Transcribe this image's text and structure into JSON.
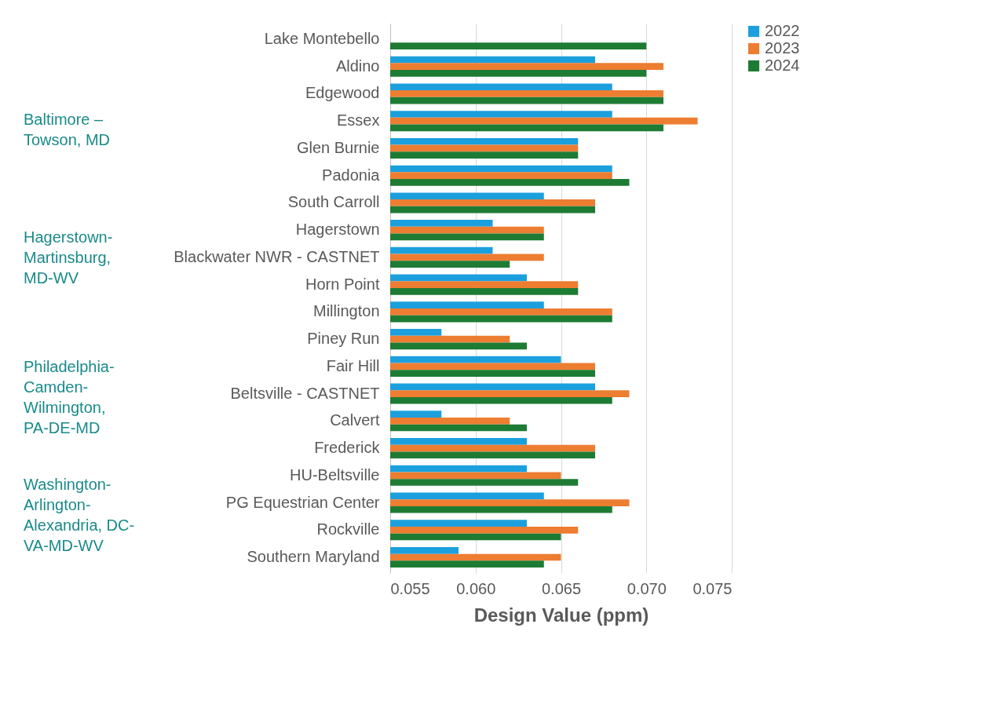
{
  "chart_data": {
    "type": "bar",
    "orientation": "horizontal",
    "xlabel": "Design Value (ppm)",
    "categories": [
      "Lake Montebello",
      "Aldino",
      "Edgewood",
      "Essex",
      "Glen Burnie",
      "Padonia",
      "South Carroll",
      "Hagerstown",
      "Blackwater NWR - CASTNET",
      "Horn Point",
      "Millington",
      "Piney Run",
      "Fair Hill",
      "Beltsville - CASTNET",
      "Calvert",
      "Frederick",
      "HU-Beltsville",
      "PG Equestrian Center",
      "Rockville",
      "Southern Maryland"
    ],
    "series": [
      {
        "name": "2022",
        "color": "#1ca0dd",
        "values": [
          null,
          0.067,
          0.068,
          0.068,
          0.066,
          0.068,
          0.064,
          0.061,
          0.061,
          0.063,
          0.064,
          0.058,
          0.065,
          0.067,
          0.058,
          0.063,
          0.063,
          0.064,
          0.063,
          0.059
        ]
      },
      {
        "name": "2023",
        "color": "#ed7d31",
        "values": [
          null,
          0.071,
          0.071,
          0.073,
          0.066,
          0.068,
          0.067,
          0.064,
          0.064,
          0.066,
          0.068,
          0.062,
          0.067,
          0.069,
          0.062,
          0.067,
          0.065,
          0.069,
          0.066,
          0.065
        ]
      },
      {
        "name": "2024",
        "color": "#1e7b34",
        "values": [
          0.07,
          0.07,
          0.071,
          0.071,
          0.066,
          0.069,
          0.067,
          0.064,
          0.062,
          0.066,
          0.068,
          0.063,
          0.067,
          0.068,
          0.063,
          0.067,
          0.066,
          0.068,
          0.065,
          0.064
        ]
      }
    ],
    "xlim": [
      0.055,
      0.075
    ],
    "xticks": [
      0.055,
      {
        "value": 0.06,
        "label": "0.060"
      },
      0.065,
      {
        "value": 0.07,
        "label": "0.070"
      },
      0.075
    ],
    "grid": "x",
    "legend": "right",
    "annotations": [
      "Baltimore –\nTowson, MD",
      "Hagerstown-\nMartinsburg,\nMD-WV",
      "Philadelphia-\nCamden-\nWilmington,\nPA-DE-MD",
      "Washington-\nArlington-\nAlexandria, DC-\nVA-MD-WV"
    ]
  }
}
